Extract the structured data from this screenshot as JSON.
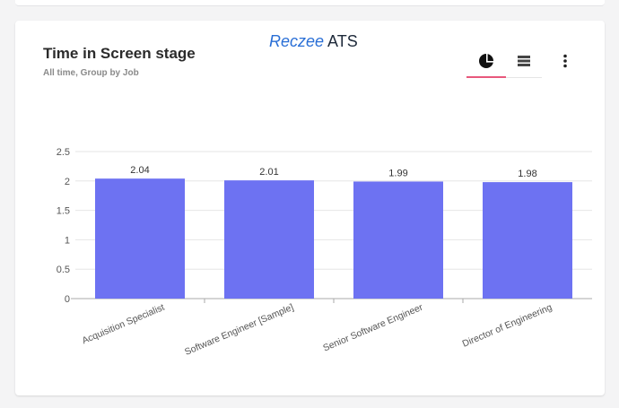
{
  "card": {
    "title": "Time in Screen stage",
    "subtitle": "All time, Group by Job"
  },
  "brand": {
    "part1": "Reczee",
    "part2": " ATS"
  },
  "tabs": [
    {
      "icon": "pie-chart-icon",
      "selected": true
    },
    {
      "icon": "list-icon",
      "selected": false
    }
  ],
  "menu": {
    "icon": "more-vertical-icon"
  },
  "colors": {
    "bar": "#6d72f2",
    "tab_accent": "#e8587c",
    "grid": "#e6e6e6"
  },
  "chart_data": {
    "type": "bar",
    "categories": [
      "Acquisition Specialist",
      "Software Engineer [Sample]",
      "Senior Software Engineer",
      "Director of Engineering"
    ],
    "values": [
      2.04,
      2.01,
      1.99,
      1.98
    ],
    "data_labels": [
      "2.04",
      "2.01",
      "1.99",
      "1.98"
    ],
    "yticks": [
      "0",
      "0.5",
      "1",
      "1.5",
      "2",
      "2.5"
    ],
    "ylim": [
      0,
      2.5
    ],
    "grid": true
  }
}
